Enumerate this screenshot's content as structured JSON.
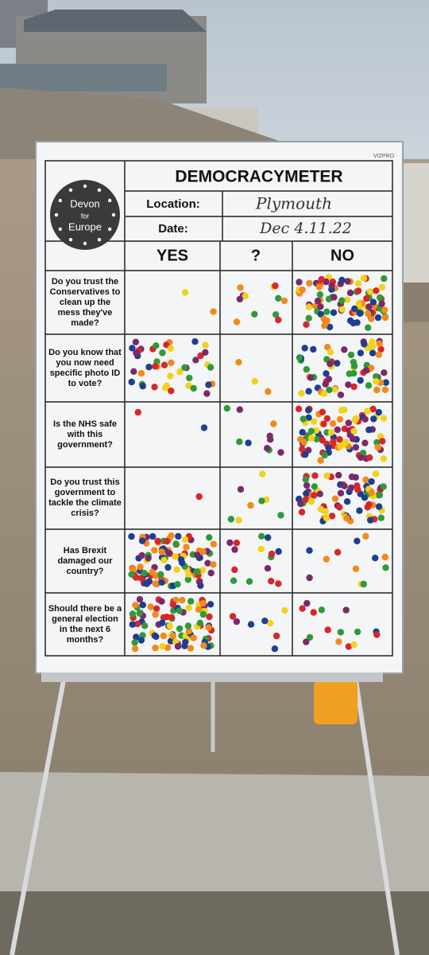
{
  "board": {
    "title": "DEMOCRACYMETER",
    "location_label": "Location:",
    "location": "Plymouth",
    "date_label": "Date:",
    "date": "Dec 4.11.22",
    "logo": [
      "Devon",
      "for",
      "Europe"
    ],
    "brand": "VIZPRO",
    "columns": [
      "YES",
      "?",
      "NO"
    ],
    "questions": [
      "Do you trust the Conservatives to clean up the mess they've made?",
      "Do you know that you now need specific photo ID to vote?",
      "Is the NHS safe with this government?",
      "Do you trust this government to tackle the climate crisis?",
      "Has Brexit damaged our country?",
      "Should there be a general election in the next 6 months?"
    ]
  }
}
